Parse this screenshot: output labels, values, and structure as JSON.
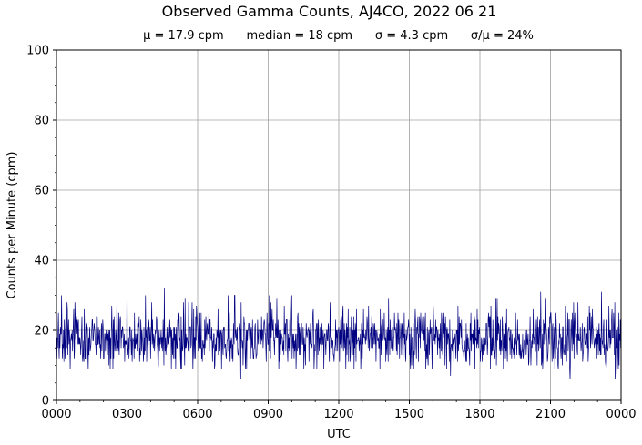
{
  "chart_data": {
    "type": "line",
    "title": "Observed Gamma Counts, AJ4CO, 2022 06 21",
    "subtitle": "μ = 17.9 cpm      median = 18 cpm      σ = 4.3 cpm      σ/μ = 24%",
    "xlabel": "UTC",
    "ylabel": "Counts per Minute (cpm)",
    "xlim": [
      0,
      1440
    ],
    "ylim": [
      0,
      100
    ],
    "x_ticks": [
      {
        "minutes": 0,
        "label": "0000"
      },
      {
        "minutes": 180,
        "label": "0300"
      },
      {
        "minutes": 360,
        "label": "0600"
      },
      {
        "minutes": 540,
        "label": "0900"
      },
      {
        "minutes": 720,
        "label": "1200"
      },
      {
        "minutes": 900,
        "label": "1500"
      },
      {
        "minutes": 1080,
        "label": "1800"
      },
      {
        "minutes": 1260,
        "label": "2100"
      },
      {
        "minutes": 1440,
        "label": "0000"
      }
    ],
    "y_ticks": [
      0,
      20,
      40,
      60,
      80,
      100
    ],
    "grid": true,
    "line_color": "#000080",
    "series": [
      {
        "mean": 17.9,
        "median": 18,
        "std": 4.3,
        "min": 6,
        "max": 36,
        "n_points": 1440,
        "x_step_minutes": 1,
        "notable_points": [
          {
            "x": 180,
            "y": 36
          },
          {
            "x": 275,
            "y": 32
          },
          {
            "x": 470,
            "y": 6
          },
          {
            "x": 1005,
            "y": 7
          },
          {
            "x": 1310,
            "y": 6
          },
          {
            "x": 1425,
            "y": 6
          },
          {
            "x": 1235,
            "y": 31
          },
          {
            "x": 1390,
            "y": 31
          }
        ]
      }
    ]
  }
}
